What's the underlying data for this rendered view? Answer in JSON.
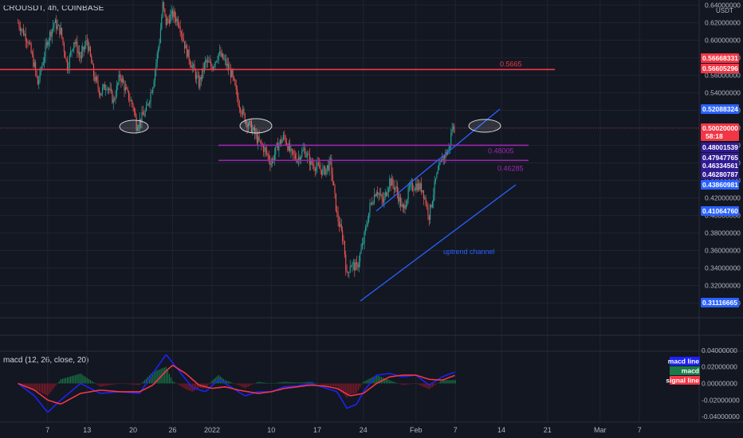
{
  "header": {
    "symbol": "CROUSDT, 4h, COINBASE",
    "currency": "USDT"
  },
  "macd_header": {
    "title": "macd (12, 26, close, 20)"
  },
  "chart_data": {
    "type": "candlestick",
    "price_axis": {
      "range": [
        0.29,
        0.645
      ],
      "ticks": [
        "0.64000000",
        "0.62000000",
        "0.60000000",
        "0.58000000",
        "0.56000000",
        "0.54000000",
        "0.52000000",
        "0.50000000",
        "0.48000000",
        "0.46000000",
        "0.44000000",
        "0.42000000",
        "0.40000000",
        "0.38000000",
        "0.36000000",
        "0.34000000",
        "0.32000000",
        "0.30000000"
      ]
    },
    "x_axis": {
      "ticks": [
        {
          "label": "7",
          "day": -25
        },
        {
          "label": "13",
          "day": -19
        },
        {
          "label": "20",
          "day": -12
        },
        {
          "label": "26",
          "day": -6
        },
        {
          "label": "2022",
          "day": 0
        },
        {
          "label": "10",
          "day": 9
        },
        {
          "label": "17",
          "day": 16
        },
        {
          "label": "24",
          "day": 23
        },
        {
          "label": "Feb",
          "day": 31
        },
        {
          "label": "7",
          "day": 37
        },
        {
          "label": "14",
          "day": 44
        },
        {
          "label": "21",
          "day": 51
        },
        {
          "label": "Mar",
          "day": 59
        },
        {
          "label": "7",
          "day": 65
        }
      ]
    },
    "price_path": [
      [
        -29.5,
        0.62
      ],
      [
        -28,
        0.6
      ],
      [
        -27,
        0.57
      ],
      [
        -26.5,
        0.55
      ],
      [
        -25,
        0.6
      ],
      [
        -24,
        0.62
      ],
      [
        -23,
        0.61
      ],
      [
        -22,
        0.57
      ],
      [
        -21,
        0.6
      ],
      [
        -20,
        0.58
      ],
      [
        -19,
        0.6
      ],
      [
        -18,
        0.56
      ],
      [
        -17,
        0.54
      ],
      [
        -16,
        0.55
      ],
      [
        -15,
        0.53
      ],
      [
        -14,
        0.56
      ],
      [
        -13,
        0.54
      ],
      [
        -12,
        0.525
      ],
      [
        -11.5,
        0.503
      ],
      [
        -11,
        0.508
      ],
      [
        -10,
        0.52
      ],
      [
        -9,
        0.55
      ],
      [
        -8,
        0.6
      ],
      [
        -7.5,
        0.64
      ],
      [
        -7,
        0.62
      ],
      [
        -6,
        0.63
      ],
      [
        -5,
        0.62
      ],
      [
        -4,
        0.59
      ],
      [
        -3,
        0.57
      ],
      [
        -2,
        0.55
      ],
      [
        -1,
        0.575
      ],
      [
        0,
        0.57
      ],
      [
        1,
        0.585
      ],
      [
        2,
        0.575
      ],
      [
        3,
        0.56
      ],
      [
        4,
        0.53
      ],
      [
        5,
        0.51
      ],
      [
        6,
        0.5
      ],
      [
        7,
        0.485
      ],
      [
        8,
        0.475
      ],
      [
        9,
        0.46
      ],
      [
        10,
        0.48
      ],
      [
        11,
        0.49
      ],
      [
        12,
        0.47
      ],
      [
        13,
        0.465
      ],
      [
        14,
        0.475
      ],
      [
        15,
        0.46
      ],
      [
        16,
        0.455
      ],
      [
        17,
        0.45
      ],
      [
        18,
        0.46
      ],
      [
        19,
        0.4
      ],
      [
        20,
        0.37
      ],
      [
        20.5,
        0.33
      ],
      [
        21,
        0.345
      ],
      [
        22,
        0.34
      ],
      [
        23,
        0.37
      ],
      [
        24,
        0.41
      ],
      [
        25,
        0.43
      ],
      [
        26,
        0.415
      ],
      [
        27,
        0.44
      ],
      [
        28,
        0.43
      ],
      [
        29,
        0.405
      ],
      [
        30,
        0.43
      ],
      [
        31,
        0.435
      ],
      [
        32,
        0.43
      ],
      [
        33,
        0.4
      ],
      [
        34,
        0.44
      ],
      [
        35,
        0.465
      ],
      [
        36,
        0.475
      ],
      [
        36.5,
        0.5
      ],
      [
        37,
        0.498
      ]
    ],
    "macd": {
      "axis_ticks": [
        "0.04000000",
        "0.02000000",
        "0.00000000",
        "-0.02000000",
        "-0.04000000"
      ],
      "macd_line": [
        [
          -29.5,
          0
        ],
        [
          -27,
          -0.015
        ],
        [
          -25,
          -0.035
        ],
        [
          -23,
          -0.02
        ],
        [
          -20,
          0.0
        ],
        [
          -17,
          -0.012
        ],
        [
          -14,
          -0.01
        ],
        [
          -11,
          -0.012
        ],
        [
          -9,
          0.012
        ],
        [
          -7,
          0.035
        ],
        [
          -5,
          0.015
        ],
        [
          -3,
          -0.005
        ],
        [
          -1,
          -0.01
        ],
        [
          1,
          0.005
        ],
        [
          3,
          -0.005
        ],
        [
          5,
          -0.015
        ],
        [
          7,
          -0.01
        ],
        [
          9,
          -0.01
        ],
        [
          11,
          -0.004
        ],
        [
          13,
          -0.003
        ],
        [
          15,
          0.0
        ],
        [
          17,
          -0.005
        ],
        [
          19,
          -0.01
        ],
        [
          20.5,
          -0.03
        ],
        [
          22,
          -0.025
        ],
        [
          23,
          -0.01
        ],
        [
          25,
          0.01
        ],
        [
          27,
          0.012
        ],
        [
          29,
          0.008
        ],
        [
          31,
          0.01
        ],
        [
          33,
          -0.002
        ],
        [
          35,
          0.008
        ],
        [
          37,
          0.014
        ]
      ],
      "signal_line": [
        [
          -29.5,
          0
        ],
        [
          -27,
          -0.008
        ],
        [
          -25,
          -0.02
        ],
        [
          -23,
          -0.025
        ],
        [
          -20,
          -0.012
        ],
        [
          -17,
          -0.008
        ],
        [
          -14,
          -0.01
        ],
        [
          -11,
          -0.01
        ],
        [
          -9,
          -0.002
        ],
        [
          -7,
          0.015
        ],
        [
          -6,
          0.022
        ],
        [
          -4,
          0.012
        ],
        [
          -2,
          -0.002
        ],
        [
          0,
          -0.006
        ],
        [
          2,
          -0.004
        ],
        [
          4,
          -0.008
        ],
        [
          7,
          -0.012
        ],
        [
          9,
          -0.01
        ],
        [
          11,
          -0.006
        ],
        [
          13,
          -0.004
        ],
        [
          15,
          -0.002
        ],
        [
          17,
          -0.003
        ],
        [
          19,
          -0.006
        ],
        [
          21,
          -0.015
        ],
        [
          23,
          -0.012
        ],
        [
          25,
          0.0
        ],
        [
          27,
          0.008
        ],
        [
          29,
          0.01
        ],
        [
          31,
          0.01
        ],
        [
          33,
          0.005
        ],
        [
          35,
          0.004
        ],
        [
          37,
          0.01
        ]
      ],
      "legend": [
        {
          "label": "macd line",
          "color": "#1e22f5"
        },
        {
          "label": "macd",
          "color": "#1a7a4a"
        },
        {
          "label": "signal line",
          "color": "#f23645"
        }
      ]
    },
    "horizontal_levels": [
      {
        "price": 0.5665,
        "label": "0.5665",
        "color": "#f23645"
      },
      {
        "price": 0.48005,
        "label": "0.48005",
        "color": "#9c27b0"
      },
      {
        "price": 0.46285,
        "label": "0.46285",
        "color": "#9c27b0"
      }
    ],
    "annotations": [
      {
        "text": "uptrend channel",
        "color": "#2962ff"
      }
    ],
    "price_labels": [
      {
        "value": "0.56668331",
        "color": "#f23645"
      },
      {
        "value": "0.56605296",
        "color": "#f23645"
      },
      {
        "value": "0.52088324",
        "color": "#2962ff"
      },
      {
        "value": "0.50020000",
        "color": "#f23645"
      },
      {
        "value": "58:18",
        "color": "#f23645"
      },
      {
        "value": "0.48001539",
        "color": "#311b92"
      },
      {
        "value": "0.47947765",
        "color": "#311b92"
      },
      {
        "value": "0.46334561",
        "color": "#311b92"
      },
      {
        "value": "0.46280787",
        "color": "#311b92"
      },
      {
        "value": "0.43860981",
        "color": "#2962ff"
      },
      {
        "value": "0.41064760",
        "color": "#2962ff"
      },
      {
        "value": "0.31116665",
        "color": "#2962ff"
      }
    ]
  }
}
